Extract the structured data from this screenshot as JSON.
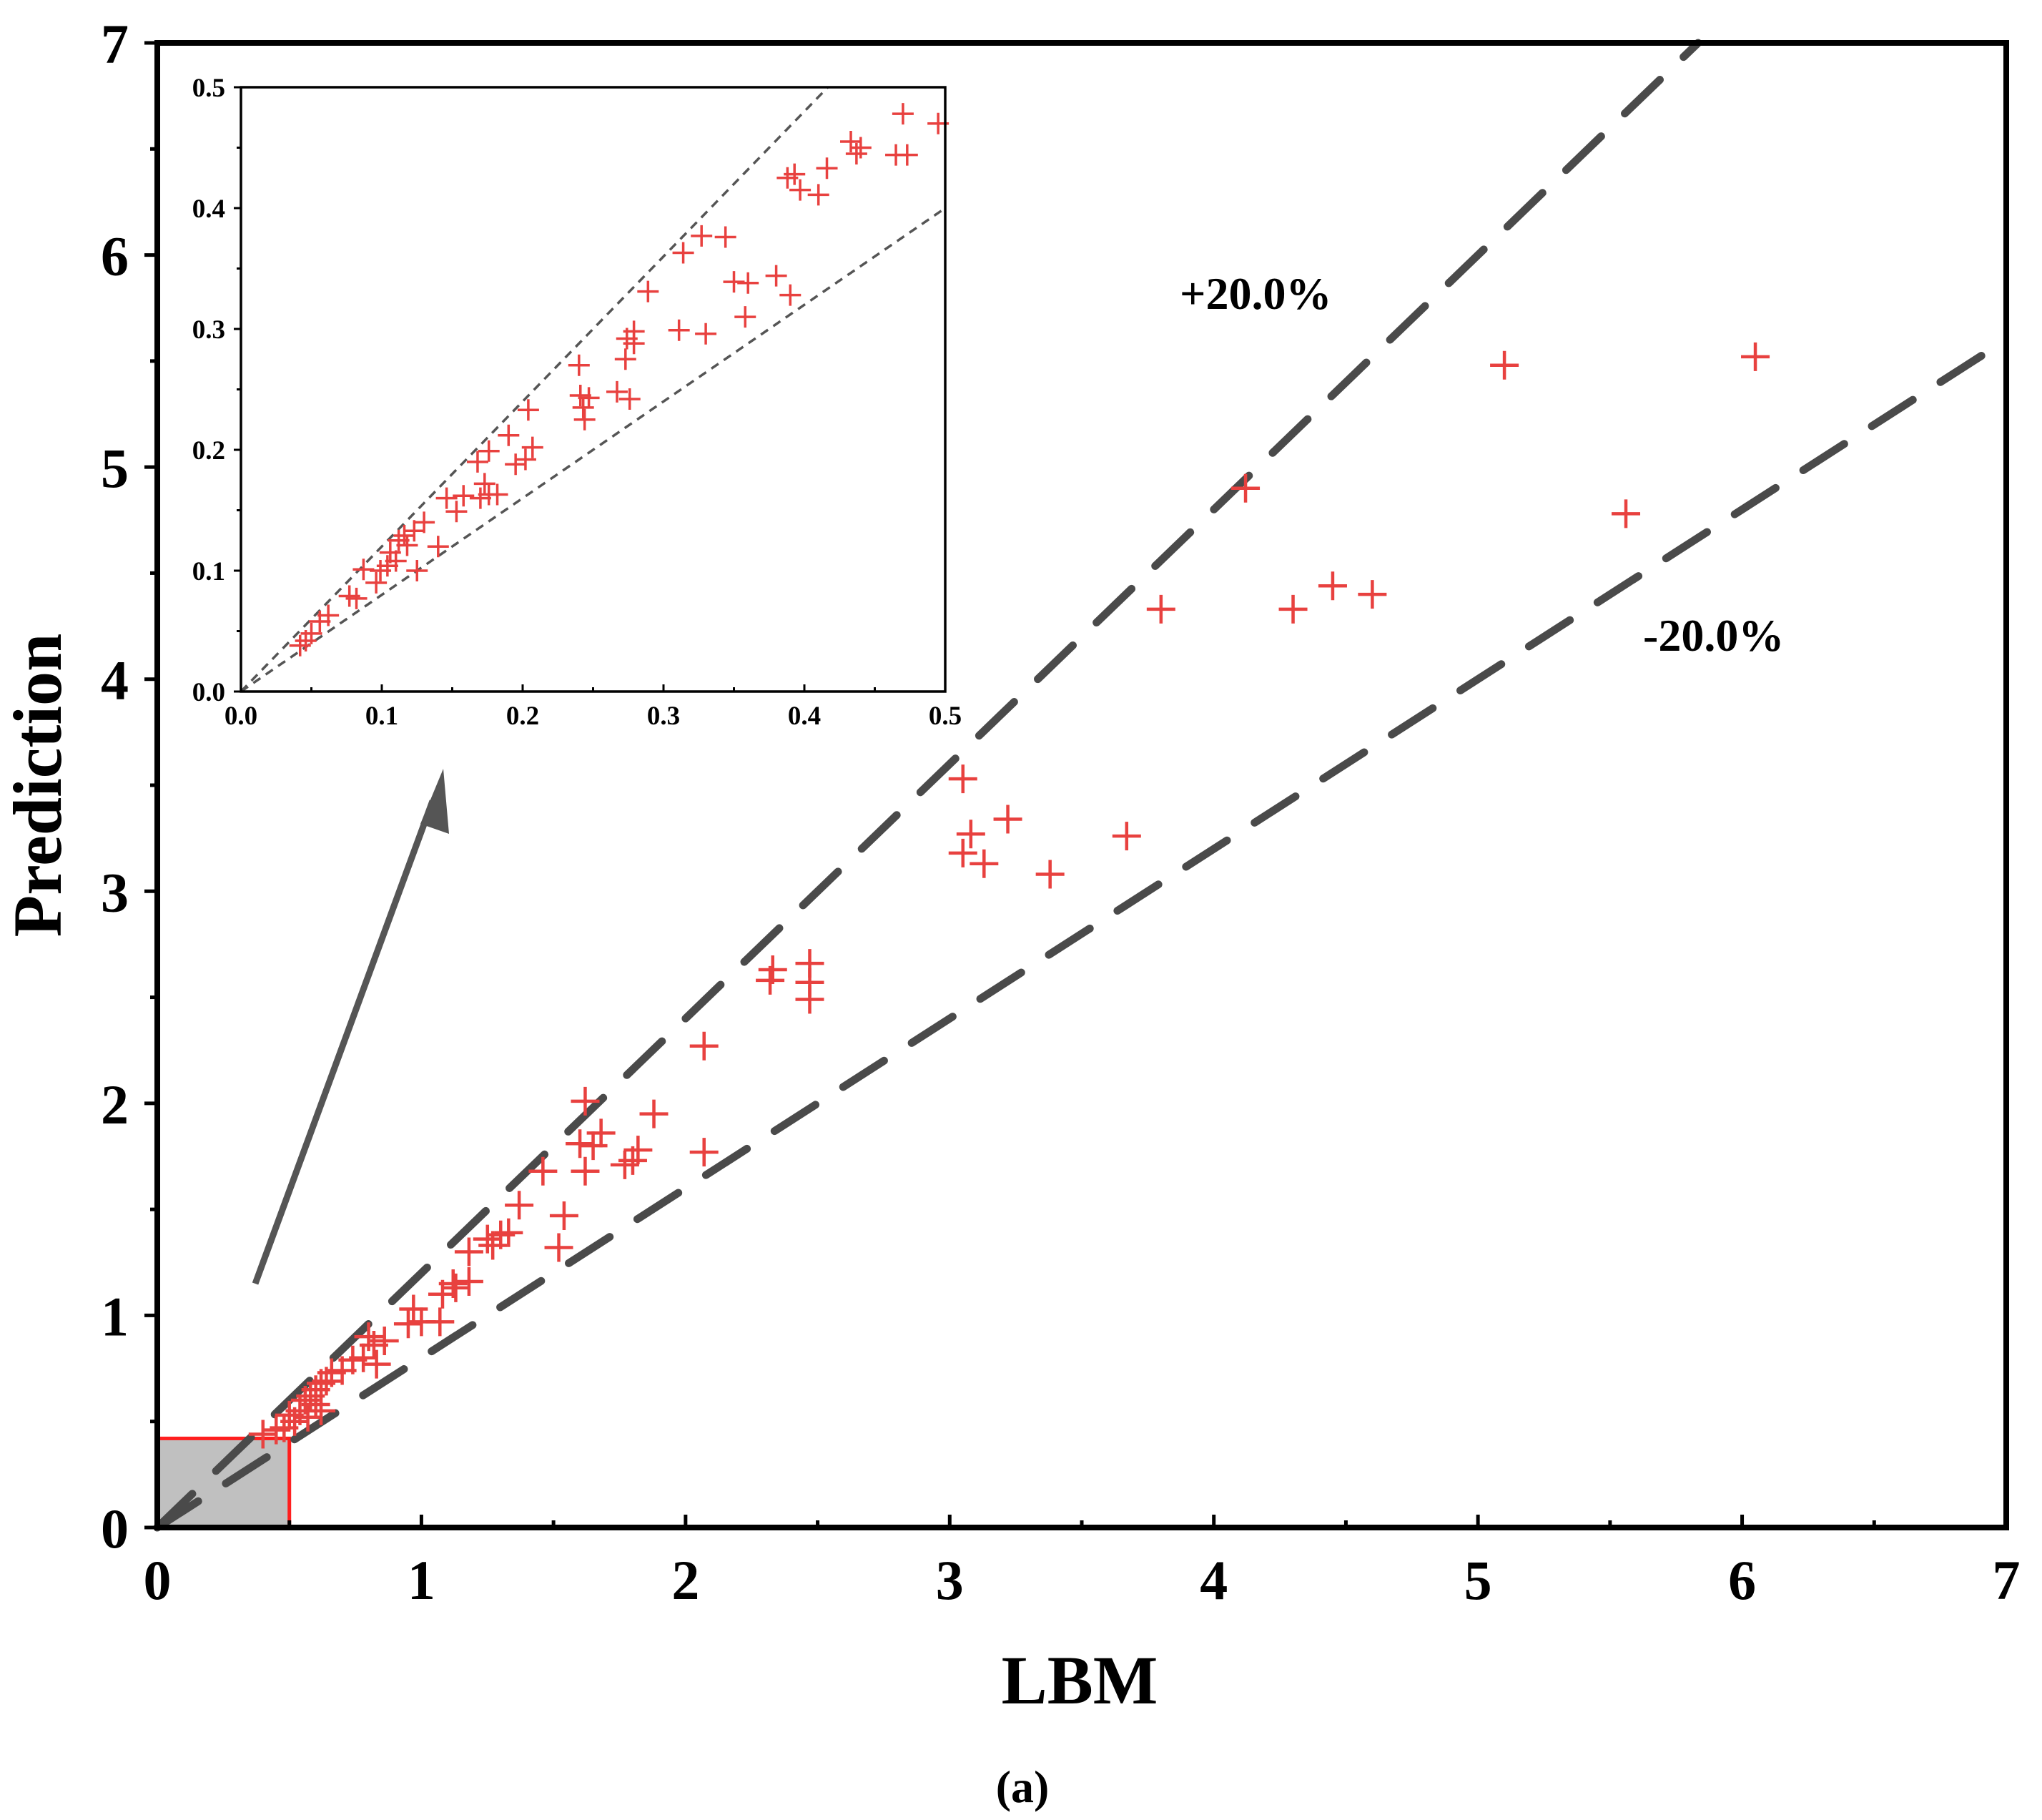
{
  "chart_data": [
    {
      "type": "scatter",
      "id": "main",
      "title": "",
      "caption": "(a)",
      "xlabel": "LBM",
      "ylabel": "Prediction",
      "xlim": [
        0,
        7
      ],
      "ylim": [
        0,
        7
      ],
      "xticks": [
        "0",
        "1",
        "2",
        "3",
        "4",
        "5",
        "6",
        "7"
      ],
      "yticks": [
        "0",
        "1",
        "2",
        "3",
        "4",
        "5",
        "6",
        "7"
      ],
      "grid": false,
      "marker": "+",
      "marker_color": "#e8413f",
      "reference_lines": [
        {
          "label": "+20.0%",
          "slope": 1.2
        },
        {
          "label": "-20.0%",
          "slope": 0.8
        }
      ],
      "highlight_region": {
        "x": [
          0,
          0.5
        ],
        "y": [
          0,
          0.42
        ]
      },
      "series": [
        {
          "name": "LBM vs Prediction",
          "points": [
            [
              6.05,
              5.52
            ],
            [
              5.1,
              5.48
            ],
            [
              5.56,
              4.78
            ],
            [
              4.12,
              4.9
            ],
            [
              3.8,
              4.33
            ],
            [
              4.3,
              4.33
            ],
            [
              4.45,
              4.44
            ],
            [
              4.6,
              4.4
            ],
            [
              3.05,
              3.53
            ],
            [
              3.08,
              3.27
            ],
            [
              3.05,
              3.18
            ],
            [
              3.13,
              3.13
            ],
            [
              3.22,
              3.34
            ],
            [
              3.38,
              3.08
            ],
            [
              3.67,
              3.26
            ],
            [
              2.32,
              2.58
            ],
            [
              2.33,
              2.63
            ],
            [
              2.47,
              2.66
            ],
            [
              2.47,
              2.57
            ],
            [
              2.47,
              2.49
            ],
            [
              2.07,
              2.27
            ],
            [
              2.07,
              1.77
            ],
            [
              1.62,
              2.01
            ],
            [
              1.6,
              1.81
            ],
            [
              1.62,
              1.68
            ],
            [
              1.65,
              1.8
            ],
            [
              1.68,
              1.86
            ],
            [
              1.77,
              1.71
            ],
            [
              1.8,
              1.73
            ],
            [
              1.82,
              1.78
            ],
            [
              1.88,
              1.95
            ],
            [
              1.46,
              1.68
            ],
            [
              1.52,
              1.32
            ],
            [
              1.54,
              1.47
            ],
            [
              1.37,
              1.52
            ],
            [
              1.3,
              1.38
            ],
            [
              1.27,
              1.33
            ],
            [
              1.33,
              1.39
            ],
            [
              1.25,
              1.36
            ],
            [
              1.18,
              1.3
            ],
            [
              1.13,
              1.13
            ],
            [
              1.08,
              1.1
            ],
            [
              1.12,
              1.15
            ],
            [
              1.18,
              1.16
            ],
            [
              1.07,
              0.97
            ],
            [
              0.97,
              1.03
            ],
            [
              0.95,
              0.96
            ],
            [
              1.0,
              0.97
            ],
            [
              0.86,
              0.88
            ],
            [
              0.8,
              0.9
            ],
            [
              0.82,
              0.86
            ],
            [
              0.78,
              0.8
            ],
            [
              0.83,
              0.77
            ],
            [
              0.74,
              0.79
            ],
            [
              0.7,
              0.74
            ],
            [
              0.66,
              0.73
            ],
            [
              0.64,
              0.69
            ],
            [
              0.62,
              0.68
            ],
            [
              0.6,
              0.65
            ],
            [
              0.58,
              0.62
            ],
            [
              0.6,
              0.58
            ],
            [
              0.56,
              0.6
            ],
            [
              0.57,
              0.52
            ],
            [
              0.62,
              0.55
            ],
            [
              0.54,
              0.55
            ],
            [
              0.52,
              0.5
            ],
            [
              0.5,
              0.53
            ],
            [
              0.48,
              0.47
            ],
            [
              0.45,
              0.46
            ],
            [
              0.4,
              0.44
            ]
          ]
        }
      ]
    },
    {
      "type": "scatter",
      "id": "inset",
      "title": "",
      "xlabel": "",
      "ylabel": "",
      "xlim": [
        0,
        0.5
      ],
      "ylim": [
        0,
        0.5
      ],
      "xticks": [
        "0.0",
        "0.1",
        "0.2",
        "0.3",
        "0.4",
        "0.5"
      ],
      "yticks": [
        "0.0",
        "0.1",
        "0.2",
        "0.3",
        "0.4",
        "0.5"
      ],
      "grid": false,
      "marker": "+",
      "marker_color": "#e8413f",
      "reference_lines": [
        {
          "label": "",
          "slope": 1.2
        },
        {
          "label": "",
          "slope": 0.8
        }
      ],
      "series": [
        {
          "name": "LBM vs Prediction (zoom)",
          "points": [
            [
              0.042,
              0.038
            ],
            [
              0.046,
              0.042
            ],
            [
              0.05,
              0.048
            ],
            [
              0.056,
              0.058
            ],
            [
              0.062,
              0.063
            ],
            [
              0.077,
              0.079
            ],
            [
              0.082,
              0.077
            ],
            [
              0.087,
              0.101
            ],
            [
              0.096,
              0.09
            ],
            [
              0.099,
              0.1
            ],
            [
              0.104,
              0.104
            ],
            [
              0.106,
              0.115
            ],
            [
              0.11,
              0.108
            ],
            [
              0.112,
              0.125
            ],
            [
              0.116,
              0.129
            ],
            [
              0.118,
              0.121
            ],
            [
              0.123,
              0.133
            ],
            [
              0.125,
              0.1
            ],
            [
              0.13,
              0.14
            ],
            [
              0.14,
              0.12
            ],
            [
              0.146,
              0.16
            ],
            [
              0.153,
              0.149
            ],
            [
              0.158,
              0.162
            ],
            [
              0.168,
              0.19
            ],
            [
              0.17,
              0.16
            ],
            [
              0.173,
              0.172
            ],
            [
              0.176,
              0.199
            ],
            [
              0.176,
              0.163
            ],
            [
              0.182,
              0.163
            ],
            [
              0.19,
              0.212
            ],
            [
              0.195,
              0.188
            ],
            [
              0.202,
              0.192
            ],
            [
              0.204,
              0.233
            ],
            [
              0.207,
              0.202
            ],
            [
              0.24,
              0.27
            ],
            [
              0.241,
              0.245
            ],
            [
              0.243,
              0.235
            ],
            [
              0.244,
              0.225
            ],
            [
              0.247,
              0.243
            ],
            [
              0.267,
              0.248
            ],
            [
              0.273,
              0.275
            ],
            [
              0.274,
              0.292
            ],
            [
              0.276,
              0.242
            ],
            [
              0.279,
              0.288
            ],
            [
              0.279,
              0.298
            ],
            [
              0.289,
              0.331
            ],
            [
              0.311,
              0.299
            ],
            [
              0.314,
              0.363
            ],
            [
              0.327,
              0.377
            ],
            [
              0.33,
              0.296
            ],
            [
              0.344,
              0.376
            ],
            [
              0.35,
              0.339
            ],
            [
              0.36,
              0.338
            ],
            [
              0.358,
              0.31
            ],
            [
              0.38,
              0.344
            ],
            [
              0.39,
              0.328
            ],
            [
              0.388,
              0.425
            ],
            [
              0.393,
              0.428
            ],
            [
              0.397,
              0.415
            ],
            [
              0.41,
              0.411
            ],
            [
              0.416,
              0.433
            ],
            [
              0.433,
              0.455
            ],
            [
              0.44,
              0.45
            ],
            [
              0.437,
              0.445
            ],
            [
              0.465,
              0.444
            ],
            [
              0.473,
              0.444
            ],
            [
              0.47,
              0.478
            ],
            [
              0.495,
              0.47
            ]
          ]
        }
      ]
    }
  ]
}
